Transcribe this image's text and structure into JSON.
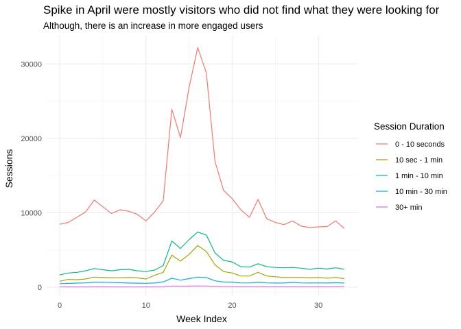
{
  "chart_data": {
    "type": "line",
    "title": "Spike in April were mostly visitors who did not find what they were looking for",
    "subtitle": "Although, there is an increase in more engaged users",
    "xlabel": "Week Index",
    "ylabel": "Sessions",
    "xlim": [
      -1.6,
      34.6
    ],
    "ylim": [
      -1200,
      33800
    ],
    "x_ticks": [
      0,
      10,
      20,
      30
    ],
    "y_ticks": [
      0,
      10000,
      20000,
      30000
    ],
    "y_tick_labels": [
      "0",
      "10000",
      "20000",
      "30000"
    ],
    "x_tick_labels": [
      "0",
      "10",
      "20",
      "30"
    ],
    "grid": true,
    "legend_title": "Session Duration",
    "legend_position": "right",
    "x": [
      0,
      1,
      2,
      3,
      4,
      5,
      6,
      7,
      8,
      9,
      10,
      11,
      12,
      13,
      14,
      15,
      16,
      17,
      18,
      19,
      20,
      21,
      22,
      23,
      24,
      25,
      26,
      27,
      28,
      29,
      30,
      31,
      32,
      33
    ],
    "series": [
      {
        "name": "0 - 10 seconds",
        "color": "#F8766D",
        "values": [
          8450,
          8700,
          9400,
          10100,
          11700,
          10800,
          9900,
          10400,
          10200,
          9800,
          8900,
          10100,
          11600,
          23900,
          20100,
          26800,
          32200,
          28800,
          16900,
          13000,
          11900,
          10400,
          9400,
          11800,
          9200,
          8700,
          8400,
          8900,
          8200,
          8000,
          8100,
          8150,
          8900,
          7900
        ]
      },
      {
        "name": "10 sec - 1 min",
        "color": "#A3A500",
        "values": [
          800,
          1050,
          1000,
          1100,
          1350,
          1300,
          1250,
          1250,
          1300,
          1250,
          1100,
          1600,
          2000,
          4300,
          3500,
          4400,
          5600,
          4800,
          3000,
          2100,
          1900,
          1500,
          1500,
          2000,
          1500,
          1400,
          1300,
          1300,
          1300,
          1250,
          1300,
          1200,
          1300,
          1150
        ]
      },
      {
        "name": "1 min - 10 min",
        "color": "#00BF7D",
        "values": [
          1650,
          1900,
          2000,
          2200,
          2500,
          2350,
          2200,
          2350,
          2400,
          2200,
          2100,
          2300,
          2900,
          6200,
          5200,
          6400,
          7400,
          7000,
          4600,
          3600,
          3400,
          2750,
          2700,
          3150,
          2750,
          2650,
          2600,
          2650,
          2550,
          2400,
          2550,
          2450,
          2600,
          2400
        ]
      },
      {
        "name": "10 min - 30 min",
        "color": "#00B0F6",
        "values": [
          480,
          500,
          550,
          580,
          650,
          650,
          620,
          600,
          560,
          540,
          520,
          560,
          700,
          1200,
          950,
          1150,
          1350,
          1300,
          850,
          700,
          650,
          580,
          570,
          650,
          580,
          560,
          560,
          640,
          580,
          560,
          580,
          560,
          600,
          560
        ]
      },
      {
        "name": "30+ min",
        "color": "#E76BF3",
        "values": [
          40,
          40,
          45,
          45,
          50,
          50,
          45,
          45,
          45,
          45,
          40,
          45,
          60,
          150,
          120,
          140,
          160,
          150,
          90,
          70,
          65,
          55,
          55,
          60,
          55,
          50,
          50,
          55,
          50,
          50,
          50,
          50,
          55,
          50
        ]
      }
    ]
  }
}
